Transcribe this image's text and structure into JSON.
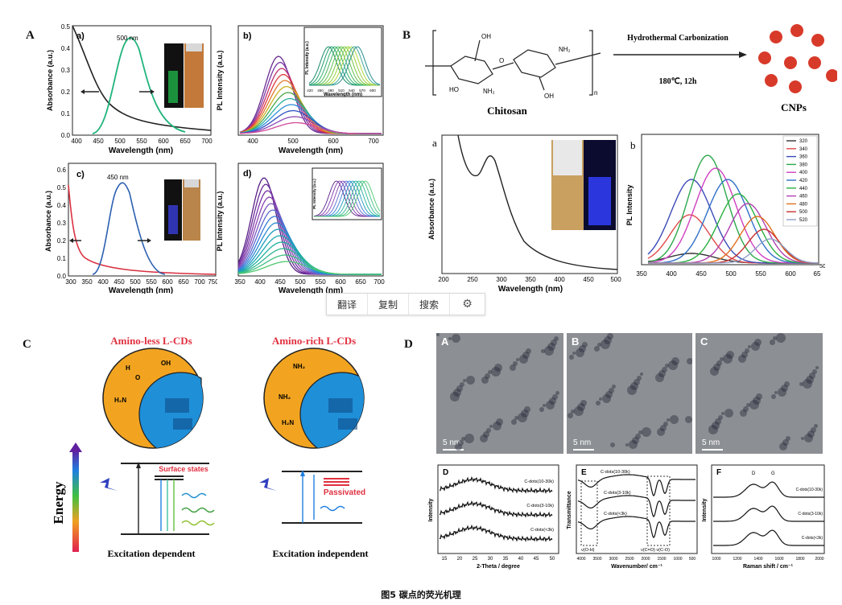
{
  "caption": "图5 碳点的荧光机理",
  "toolbar": {
    "translate": "翻译",
    "copy": "复制",
    "search": "搜索",
    "settings_icon": "gear-icon"
  },
  "panels": {
    "A": {
      "label": "A",
      "a": {
        "label": "a)",
        "peak": "500 nm",
        "xlabel": "Wavelength (nm)",
        "ylabel": "Absorbance (a.u.)",
        "yticks": [
          "0.0",
          "0.1",
          "0.2",
          "0.3",
          "0.4",
          "0.5"
        ],
        "xticks": [
          "400",
          "450",
          "500",
          "550",
          "600",
          "650",
          "700"
        ]
      },
      "b": {
        "label": "b)",
        "xlabel": "Wavelength (nm)",
        "ylabel": "PL Intensity (a.u.)",
        "xticks": [
          "400",
          "500",
          "600",
          "700"
        ],
        "inset_ylabel": "PL Intensity (a.u.)",
        "inset_xlabel": "Wavelength (nm)",
        "inset_xticks": [
          "420",
          "450",
          "480",
          "510",
          "540",
          "570",
          "600"
        ]
      },
      "c": {
        "label": "c)",
        "peak": "450 nm",
        "xlabel": "Wavelength (nm)",
        "ylabel": "Absorbance (a.u.)",
        "yticks": [
          "0.0",
          "0.1",
          "0.2",
          "0.3",
          "0.4",
          "0.5",
          "0.6"
        ],
        "xticks": [
          "300",
          "350",
          "400",
          "450",
          "500",
          "550",
          "600",
          "650",
          "700",
          "750"
        ]
      },
      "d": {
        "label": "d)",
        "xlabel": "Wavelength (nm)",
        "ylabel": "PL Intensity (a.u.)",
        "xticks": [
          "350",
          "400",
          "450",
          "500",
          "550",
          "600",
          "650",
          "700"
        ],
        "inset_ylabel": "PL Intensity (a.u.)"
      }
    },
    "B": {
      "label": "B",
      "precursor": "Chitosan",
      "product": "CNPs",
      "process": "Hydrothermal Carbonization",
      "conditions": "180℃, 12h",
      "struct": {
        "oh1": "OH",
        "ho": "HO",
        "nh2a": "NH₂",
        "nh2b": "NH₂",
        "oh2": "OH",
        "o": "O",
        "n": "n"
      },
      "a": {
        "label": "a",
        "xlabel": "Wavelength (nm)",
        "ylabel": "Absorbance (a.u.)",
        "xticks": [
          "200",
          "250",
          "300",
          "350",
          "400",
          "450",
          "500"
        ]
      },
      "b": {
        "label": "b",
        "ylabel": "PL Intensity",
        "xticks": [
          "350",
          "400",
          "450",
          "500",
          "550",
          "600",
          "65"
        ],
        "legend": [
          "320",
          "340",
          "360",
          "380",
          "400",
          "420",
          "440",
          "460",
          "480",
          "500",
          "520"
        ],
        "yedge": "50"
      }
    },
    "C": {
      "label": "C",
      "left_title": "Amino-less L-CDs",
      "right_title": "Amino-rich L-CDs",
      "surface_states": "Surface states",
      "passivated": "Passivated",
      "energy": "Energy",
      "left_caption": "Excitation dependent",
      "right_caption": "Excitation independent",
      "groups": {
        "oh": "OH",
        "h2n": "H₂N",
        "nh2": "NH₂",
        "o": "O",
        "h": "H"
      }
    },
    "D": {
      "label": "D",
      "tem": [
        {
          "label": "A",
          "scale": "5 nm"
        },
        {
          "label": "B",
          "scale": "5 nm"
        },
        {
          "label": "C",
          "scale": "5 nm"
        }
      ],
      "xrd": {
        "label": "D",
        "xlabel": "2-Theta / degree",
        "ylabel": "Intensity",
        "series": [
          "C-dots(10-30k)",
          "C-dots(3-10k)",
          "C-dots(<3k)"
        ],
        "xticks": [
          "15",
          "20",
          "25",
          "30",
          "35",
          "40",
          "45",
          "50"
        ]
      },
      "ftir": {
        "label": "E",
        "xlabel": "Wavenumber/ cm⁻¹",
        "ylabel": "Transmittance",
        "series": [
          "C-dots(10-30k)",
          "C-dots(3-10k)",
          "C-dots(<3k)"
        ],
        "ann1": "ν(O-H)",
        "ann2": "ν(C=O) ν(C-O)",
        "xticks": [
          "4000",
          "3500",
          "3000",
          "2500",
          "2000",
          "1500",
          "1000",
          "500"
        ]
      },
      "raman": {
        "label": "F",
        "xlabel": "Raman shift / cm⁻¹",
        "ylabel": "Intensity",
        "d": "D",
        "g": "G",
        "series": [
          "C-dots(10-30k)",
          "C-dots(3-10k)",
          "C-dots(<3k)"
        ],
        "xticks": [
          "1000",
          "1200",
          "1400",
          "1600",
          "1800",
          "2000"
        ]
      }
    }
  },
  "colors": {
    "green": "#1fb37a",
    "blue": "#2b5fb0",
    "red": "#d93040",
    "orange": "#f2a421",
    "cyan": "#1f8fd8",
    "particle": "#d83a2a"
  }
}
